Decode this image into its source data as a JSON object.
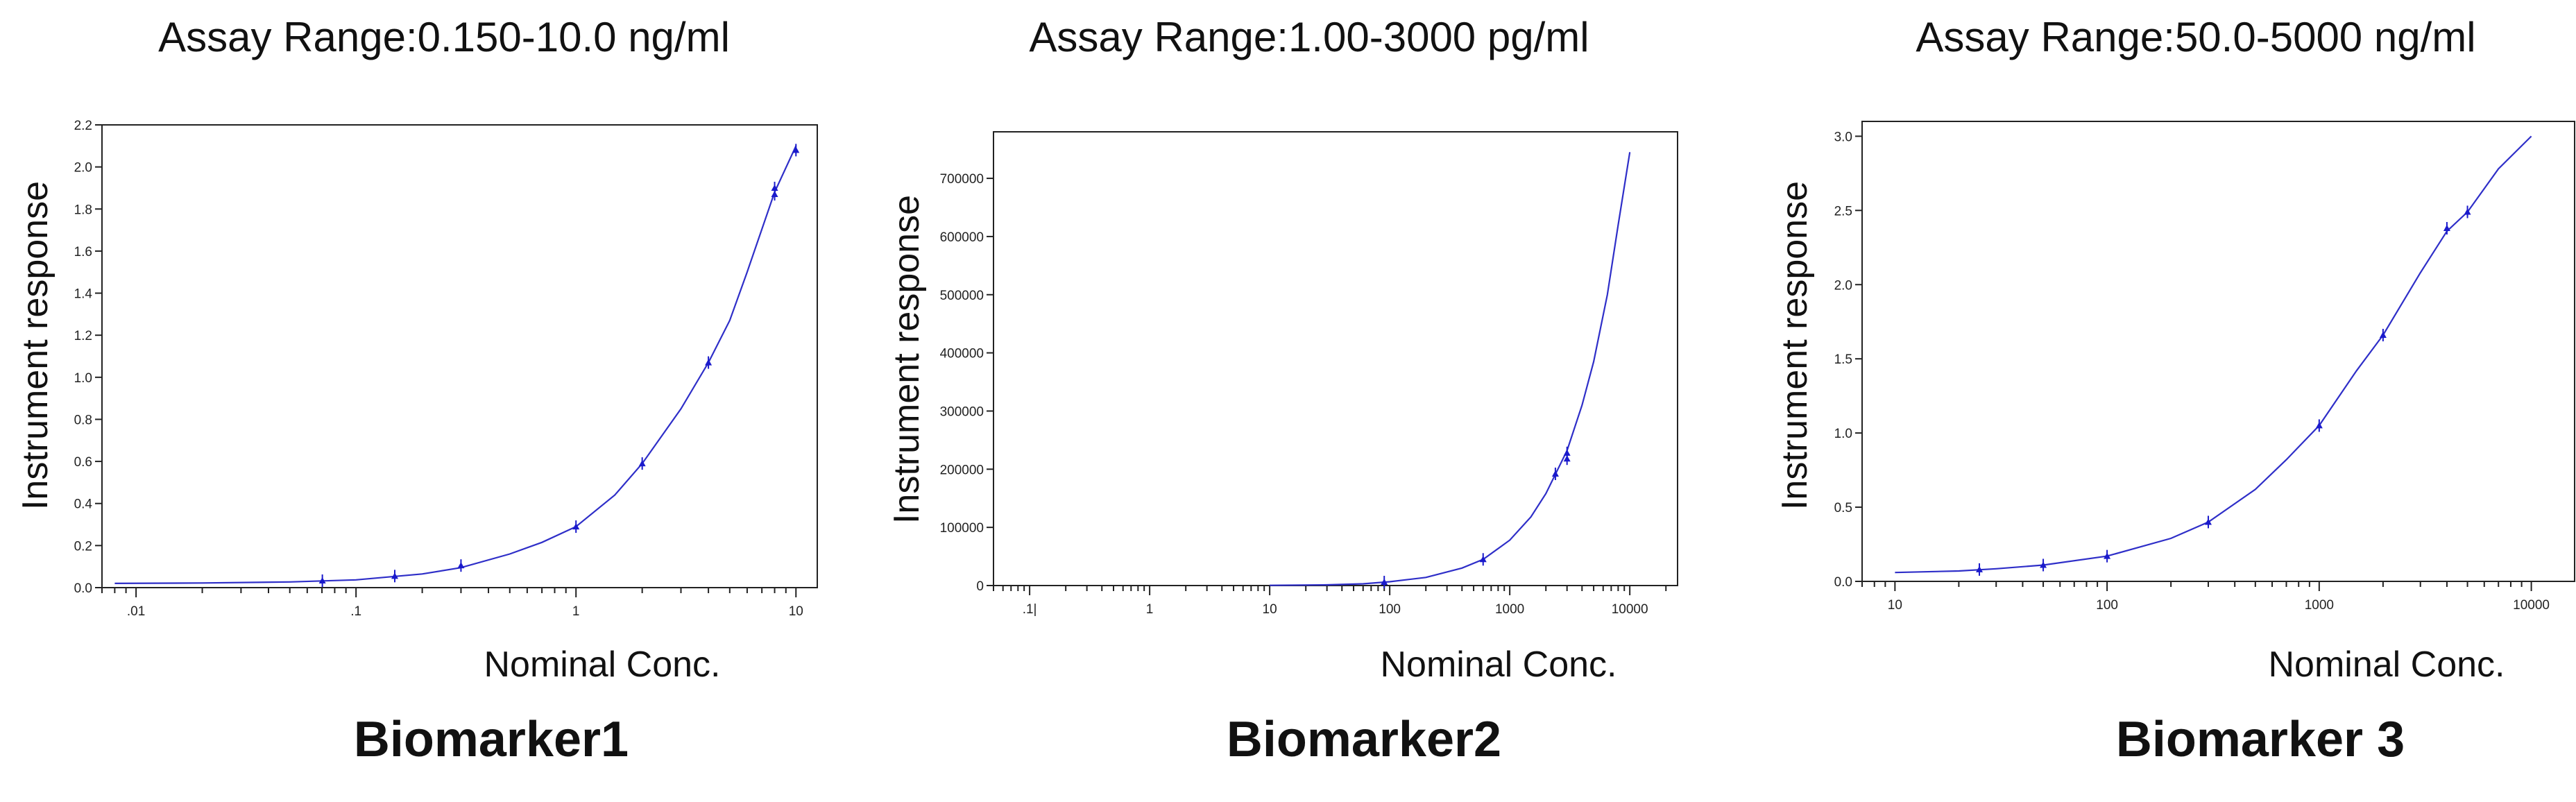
{
  "chart_data": [
    {
      "type": "scatter",
      "title": "Assay Range:0.150-10.0 ng/ml",
      "name": "Biomarker1",
      "xlabel": "Nominal Conc.",
      "ylabel": "Instrument response",
      "x_scale": "log",
      "xlim": [
        0.007,
        12.5
      ],
      "ylim": [
        0,
        2.2
      ],
      "x_ticks": [
        {
          "v": 0.01,
          "label": ".01"
        },
        {
          "v": 0.1,
          "label": ".1"
        },
        {
          "v": 1,
          "label": "1"
        },
        {
          "v": 10,
          "label": "10"
        }
      ],
      "y_ticks": [
        {
          "v": 0,
          "label": "0.0"
        },
        {
          "v": 0.2,
          "label": "0.2"
        },
        {
          "v": 0.4,
          "label": "0.4"
        },
        {
          "v": 0.6,
          "label": "0.6"
        },
        {
          "v": 0.8,
          "label": "0.8"
        },
        {
          "v": 1.0,
          "label": "1.0"
        },
        {
          "v": 1.2,
          "label": "1.2"
        },
        {
          "v": 1.4,
          "label": "1.4"
        },
        {
          "v": 1.6,
          "label": "1.6"
        },
        {
          "v": 1.8,
          "label": "1.8"
        },
        {
          "v": 2.0,
          "label": "2.0"
        },
        {
          "v": 2.2,
          "label": "2.2"
        }
      ],
      "curve_color": "#2e2ec8",
      "marker_color": "#1a1acc",
      "points": [
        {
          "x": 0.0703,
          "y": 0.033
        },
        {
          "x": 0.15,
          "y": 0.055
        },
        {
          "x": 0.3,
          "y": 0.105
        },
        {
          "x": 1.0,
          "y": 0.29
        },
        {
          "x": 2.0,
          "y": 0.59
        },
        {
          "x": 4.0,
          "y": 1.07
        },
        {
          "x": 8.0,
          "y": 1.87
        },
        {
          "x": 8.0,
          "y": 1.9
        },
        {
          "x": 10.0,
          "y": 2.08
        }
      ],
      "curve": [
        {
          "x": 0.008,
          "y": 0.02
        },
        {
          "x": 0.02,
          "y": 0.022
        },
        {
          "x": 0.05,
          "y": 0.027
        },
        {
          "x": 0.1,
          "y": 0.037
        },
        {
          "x": 0.2,
          "y": 0.065
        },
        {
          "x": 0.3,
          "y": 0.095
        },
        {
          "x": 0.5,
          "y": 0.16
        },
        {
          "x": 0.7,
          "y": 0.215
        },
        {
          "x": 1.0,
          "y": 0.29
        },
        {
          "x": 1.5,
          "y": 0.44
        },
        {
          "x": 2.0,
          "y": 0.59
        },
        {
          "x": 3.0,
          "y": 0.85
        },
        {
          "x": 4.0,
          "y": 1.07
        },
        {
          "x": 5.0,
          "y": 1.27
        },
        {
          "x": 6.0,
          "y": 1.5
        },
        {
          "x": 8.0,
          "y": 1.88
        },
        {
          "x": 10.0,
          "y": 2.1
        }
      ]
    },
    {
      "type": "scatter",
      "title": "Assay Range:1.00-3000 pg/ml",
      "name": "Biomarker2",
      "xlabel": "Nominal Conc.",
      "ylabel": "Instrument response",
      "x_scale": "log",
      "xlim": [
        0.05,
        25000
      ],
      "ylim": [
        0,
        780000
      ],
      "x_ticks": [
        {
          "v": 0.1,
          "label": ".1|"
        },
        {
          "v": 1,
          "label": "1"
        },
        {
          "v": 10,
          "label": "10"
        },
        {
          "v": 100,
          "label": "100"
        },
        {
          "v": 1000,
          "label": "1000"
        },
        {
          "v": 10000,
          "label": "10000"
        }
      ],
      "y_ticks": [
        {
          "v": 0,
          "label": "0"
        },
        {
          "v": 100000,
          "label": "100000"
        },
        {
          "v": 200000,
          "label": "200000"
        },
        {
          "v": 300000,
          "label": "300000"
        },
        {
          "v": 400000,
          "label": "400000"
        },
        {
          "v": 500000,
          "label": "500000"
        },
        {
          "v": 600000,
          "label": "600000"
        },
        {
          "v": 700000,
          "label": "700000"
        }
      ],
      "curve_color": "#2e2ec8",
      "marker_color": "#1a1acc",
      "points": [
        {
          "x": 90,
          "y": 6000
        },
        {
          "x": 600,
          "y": 45000
        },
        {
          "x": 2400,
          "y": 192000
        },
        {
          "x": 3000,
          "y": 218000
        },
        {
          "x": 3000,
          "y": 228000
        }
      ],
      "curve": [
        {
          "x": 10,
          "y": 300
        },
        {
          "x": 30,
          "y": 1200
        },
        {
          "x": 60,
          "y": 3000
        },
        {
          "x": 100,
          "y": 6500
        },
        {
          "x": 200,
          "y": 14000
        },
        {
          "x": 400,
          "y": 30000
        },
        {
          "x": 600,
          "y": 45000
        },
        {
          "x": 1000,
          "y": 78000
        },
        {
          "x": 1500,
          "y": 118000
        },
        {
          "x": 2000,
          "y": 158000
        },
        {
          "x": 3000,
          "y": 232000
        },
        {
          "x": 4000,
          "y": 310000
        },
        {
          "x": 5000,
          "y": 385000
        },
        {
          "x": 6500,
          "y": 500000
        },
        {
          "x": 8000,
          "y": 620000
        },
        {
          "x": 10000,
          "y": 745000
        }
      ]
    },
    {
      "type": "scatter",
      "title": "Assay Range:50.0-5000 ng/ml",
      "name": "Biomarker 3",
      "xlabel": "Nominal Conc.",
      "ylabel": "Instrument response",
      "x_scale": "log",
      "xlim": [
        7,
        16000
      ],
      "ylim": [
        0,
        3.1
      ],
      "x_ticks": [
        {
          "v": 10,
          "label": "10"
        },
        {
          "v": 100,
          "label": "100"
        },
        {
          "v": 1000,
          "label": "1000"
        },
        {
          "v": 10000,
          "label": "10000"
        }
      ],
      "y_ticks": [
        {
          "v": 0,
          "label": "0.0"
        },
        {
          "v": 0.5,
          "label": "0.5"
        },
        {
          "v": 1.0,
          "label": "1.0"
        },
        {
          "v": 1.5,
          "label": "1.5"
        },
        {
          "v": 2.0,
          "label": "2.0"
        },
        {
          "v": 2.5,
          "label": "2.5"
        },
        {
          "v": 3.0,
          "label": "3.0"
        }
      ],
      "curve_color": "#2e2ec8",
      "marker_color": "#1a1acc",
      "points": [
        {
          "x": 25,
          "y": 0.08
        },
        {
          "x": 50,
          "y": 0.11
        },
        {
          "x": 100,
          "y": 0.17
        },
        {
          "x": 300,
          "y": 0.4
        },
        {
          "x": 1000,
          "y": 1.05
        },
        {
          "x": 2000,
          "y": 1.66
        },
        {
          "x": 4000,
          "y": 2.38
        },
        {
          "x": 5000,
          "y": 2.49
        }
      ],
      "curve": [
        {
          "x": 10,
          "y": 0.06
        },
        {
          "x": 20,
          "y": 0.07
        },
        {
          "x": 30,
          "y": 0.085
        },
        {
          "x": 50,
          "y": 0.11
        },
        {
          "x": 100,
          "y": 0.17
        },
        {
          "x": 200,
          "y": 0.29
        },
        {
          "x": 300,
          "y": 0.4
        },
        {
          "x": 500,
          "y": 0.62
        },
        {
          "x": 700,
          "y": 0.82
        },
        {
          "x": 1000,
          "y": 1.05
        },
        {
          "x": 1500,
          "y": 1.42
        },
        {
          "x": 2000,
          "y": 1.66
        },
        {
          "x": 3000,
          "y": 2.08
        },
        {
          "x": 4000,
          "y": 2.36
        },
        {
          "x": 5000,
          "y": 2.49
        },
        {
          "x": 7000,
          "y": 2.78
        },
        {
          "x": 10000,
          "y": 3.0
        }
      ]
    }
  ]
}
